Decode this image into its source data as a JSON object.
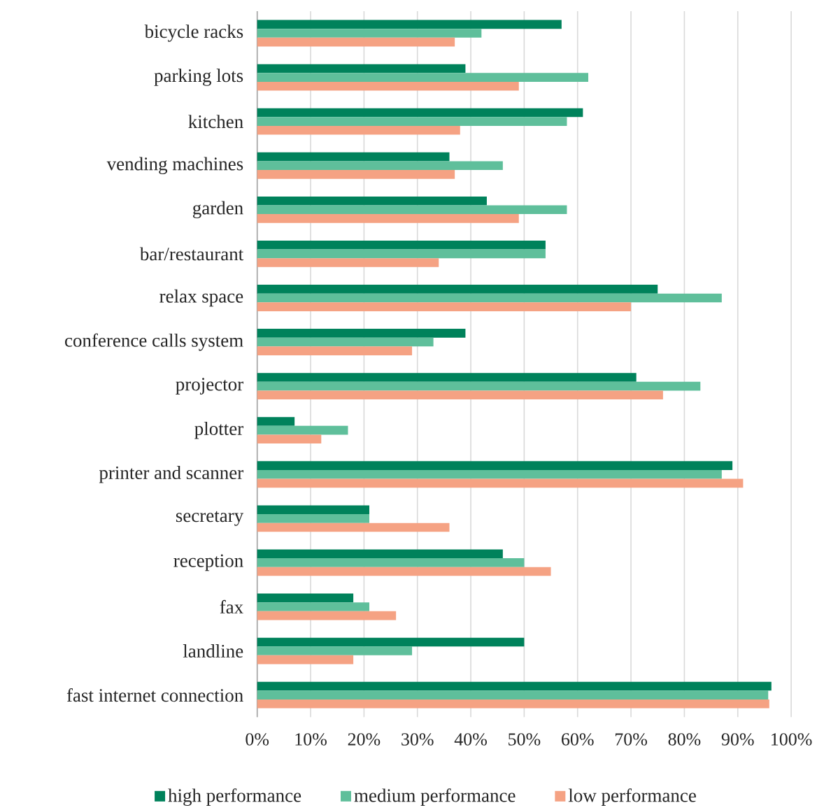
{
  "chart_data": {
    "type": "bar",
    "orientation": "horizontal",
    "categories": [
      "bicycle racks",
      "parking lots",
      "kitchen",
      "vending machines",
      "garden",
      "bar/restaurant",
      "relax space",
      "conference calls system",
      "projector",
      "plotter",
      "printer and scanner",
      "secretary",
      "reception",
      "fax",
      "landline",
      "fast internet connection"
    ],
    "series": [
      {
        "name": "high performance",
        "color": "#00825b",
        "values": [
          57,
          39,
          61,
          36,
          43,
          54,
          75,
          39,
          71,
          7,
          89,
          21,
          46,
          18,
          50,
          96.3
        ]
      },
      {
        "name": "medium performance",
        "color": "#5fbf9b",
        "values": [
          42,
          62,
          58,
          46,
          58,
          54,
          87,
          33,
          83,
          17,
          87,
          21,
          50,
          21,
          29,
          95.7
        ]
      },
      {
        "name": "low performance",
        "color": "#f5a283",
        "values": [
          37,
          49,
          38,
          37,
          49,
          34,
          70,
          29,
          76,
          12,
          91,
          36,
          55,
          26,
          18,
          95.9
        ]
      }
    ],
    "xlim": [
      0,
      100
    ],
    "xticks": [
      {
        "value": 0,
        "label": "0%"
      },
      {
        "value": 10,
        "label": "10%"
      },
      {
        "value": 20,
        "label": "20%"
      },
      {
        "value": 30,
        "label": "30%"
      },
      {
        "value": 40,
        "label": "40%"
      },
      {
        "value": 50,
        "label": "50%"
      },
      {
        "value": 60,
        "label": "60%"
      },
      {
        "value": 70,
        "label": "70%"
      },
      {
        "value": 80,
        "label": "80%"
      },
      {
        "value": 90,
        "label": "90%"
      },
      {
        "value": 100,
        "label": "100%"
      }
    ],
    "grid": "x",
    "legend": "bottom"
  }
}
